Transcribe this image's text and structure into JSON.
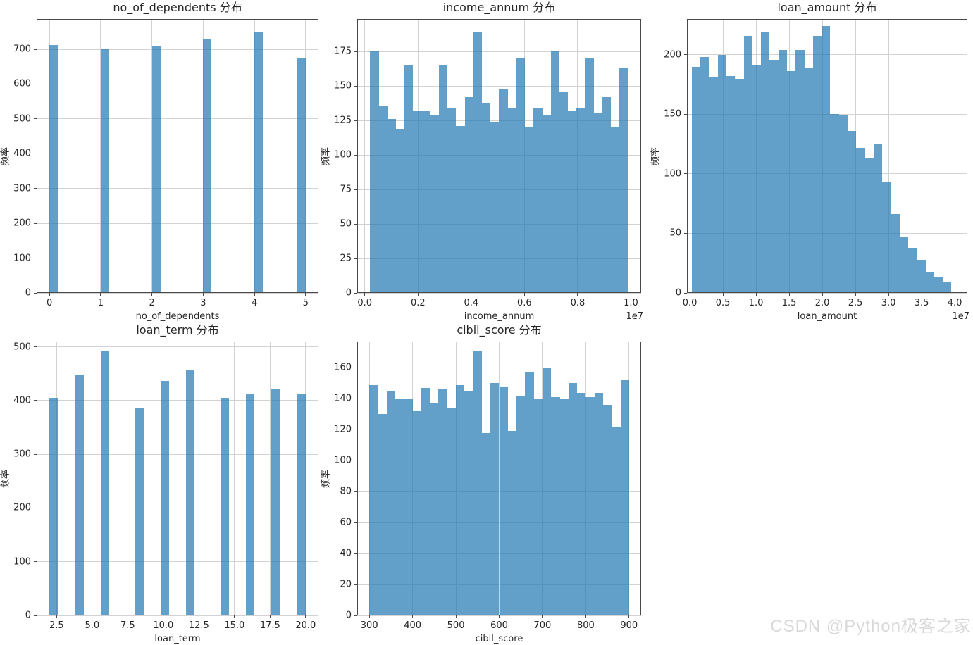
{
  "watermark": "CSDN @Python极客之家",
  "colors": {
    "bar": "#1f77b4",
    "bar_alpha": 0.7,
    "grid": "#d2d2d2",
    "spine": "#494949",
    "text": "#262626",
    "watermark": "#d9d9d9"
  },
  "chart_data": [
    {
      "id": "no_of_dependents",
      "type": "bar",
      "title": "no_of_dependents 分布",
      "xlabel": "no_of_dependents",
      "ylabel": "频率",
      "grid": true,
      "xlim": [
        -0.25,
        5.25
      ],
      "ylim": [
        0,
        787
      ],
      "xticks": [
        0,
        1,
        2,
        3,
        4,
        5
      ],
      "xtick_labels": [
        "0",
        "1",
        "2",
        "3",
        "4",
        "5"
      ],
      "yticks": [
        0,
        100,
        200,
        300,
        400,
        500,
        600,
        700
      ],
      "bar_width": 0.1667,
      "bars": [
        [
          0.0,
          712
        ],
        [
          1.0,
          699
        ],
        [
          2.0,
          708
        ],
        [
          3.0,
          728
        ],
        [
          4.0,
          750
        ],
        [
          4.8333,
          675
        ]
      ]
    },
    {
      "id": "income_annum",
      "type": "bar",
      "title": "income_annum 分布",
      "xlabel": "income_annum",
      "ylabel": "频率",
      "x_offset_label": "1e7",
      "grid": true,
      "xlim": [
        -0.0285,
        1.0385
      ],
      "ylim": [
        0,
        198.5
      ],
      "xticks": [
        0.0,
        0.2,
        0.4,
        0.6,
        0.8,
        1.0
      ],
      "xtick_labels": [
        "0.0",
        "0.2",
        "0.4",
        "0.6",
        "0.8",
        "1.0"
      ],
      "yticks": [
        0,
        25,
        50,
        75,
        100,
        125,
        150,
        175
      ],
      "bin_start": 0.02,
      "bin_width": 0.032333,
      "values": [
        175,
        135,
        126,
        119,
        165,
        132,
        132,
        129,
        165,
        134,
        121,
        142,
        189,
        138,
        124,
        148,
        134,
        170,
        120,
        134,
        129,
        175,
        146,
        132,
        134,
        170,
        130,
        142,
        120,
        163
      ]
    },
    {
      "id": "loan_amount",
      "type": "bar",
      "title": "loan_amount 分布",
      "xlabel": "loan_amount",
      "ylabel": "频率",
      "x_offset_label": "1e7",
      "grid": true,
      "xlim": [
        -0.043,
        4.19
      ],
      "ylim": [
        0,
        230
      ],
      "xticks": [
        0.0,
        0.5,
        1.0,
        1.5,
        2.0,
        2.5,
        3.0,
        3.5,
        4.0
      ],
      "xtick_labels": [
        "0.0",
        "0.5",
        "1.0",
        "1.5",
        "2.0",
        "2.5",
        "3.0",
        "3.5",
        "4.0"
      ],
      "yticks": [
        0,
        50,
        100,
        150,
        200
      ],
      "bin_start": 0.03,
      "bin_width": 0.13067,
      "values": [
        190,
        198,
        181,
        200,
        182,
        180,
        216,
        191,
        219,
        196,
        204,
        186,
        204,
        189,
        216,
        224,
        150,
        149,
        136,
        122,
        113,
        125,
        93,
        66,
        47,
        38,
        28,
        18,
        13,
        9
      ]
    },
    {
      "id": "loan_term",
      "type": "bar",
      "title": "loan_term 分布",
      "xlabel": "loan_term",
      "ylabel": "频率",
      "grid": true,
      "xlim": [
        1.1,
        20.9
      ],
      "ylim": [
        0,
        510
      ],
      "xticks": [
        2.5,
        5.0,
        7.5,
        10.0,
        12.5,
        15.0,
        17.5,
        20.0
      ],
      "xtick_labels": [
        "2.5",
        "5.0",
        "7.5",
        "10.0",
        "12.5",
        "15.0",
        "17.5",
        "20.0"
      ],
      "yticks": [
        0,
        100,
        200,
        300,
        400,
        500
      ],
      "bar_width": 0.6,
      "bars": [
        [
          2.0,
          405
        ],
        [
          3.8,
          448
        ],
        [
          5.6,
          492
        ],
        [
          8.0,
          387
        ],
        [
          9.8,
          437
        ],
        [
          11.6,
          456
        ],
        [
          14.0,
          405
        ],
        [
          15.8,
          412
        ],
        [
          17.6,
          422
        ],
        [
          19.4,
          412
        ]
      ]
    },
    {
      "id": "cibil_score",
      "type": "bar",
      "title": "cibil_score 分布",
      "xlabel": "cibil_score",
      "ylabel": "频率",
      "grid": true,
      "xlim": [
        272,
        928
      ],
      "ylim": [
        0,
        177
      ],
      "xticks": [
        300,
        400,
        500,
        600,
        700,
        800,
        900
      ],
      "xtick_labels": [
        "300",
        "400",
        "500",
        "600",
        "700",
        "800",
        "900"
      ],
      "yticks": [
        0,
        20,
        40,
        60,
        80,
        100,
        120,
        140,
        160
      ],
      "bin_start": 300,
      "bin_width": 20,
      "values": [
        149,
        130,
        145,
        140,
        140,
        132,
        147,
        137,
        146,
        134,
        149,
        145,
        171,
        118,
        150,
        148,
        119,
        142,
        157,
        140,
        160,
        141,
        140,
        150,
        144,
        141,
        144,
        136,
        122,
        152
      ]
    }
  ]
}
